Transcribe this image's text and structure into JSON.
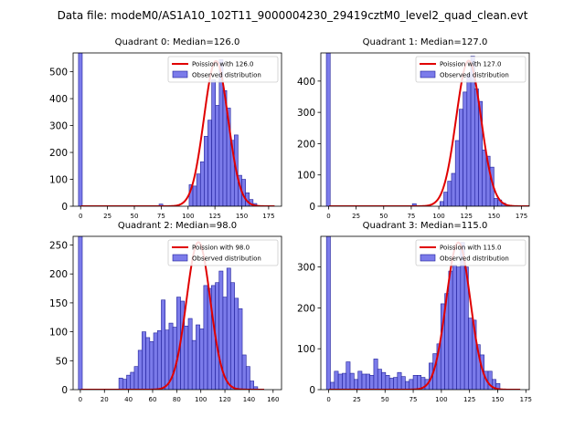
{
  "figure": {
    "suptitle": "Data file: modeM0/AS1A10_102T11_9000004230_29419cztM0_level2_quad_clean.evt"
  },
  "colors": {
    "bar_fill": "#7b7bea",
    "bar_edge": "#1f1f9a",
    "poisson_line": "#e00000"
  },
  "chart_data": [
    {
      "type": "bar",
      "title": "Quadrant 0: Median=126.0",
      "legend": [
        "Poission with 126.0",
        "Observed distribution"
      ],
      "legend_position": "top-right",
      "xlim": [
        -7,
        187
      ],
      "ylim": [
        0,
        570
      ],
      "xticks": [
        0,
        25,
        50,
        75,
        100,
        125,
        150,
        175
      ],
      "yticks": [
        0,
        100,
        200,
        300,
        400,
        500
      ],
      "bin_width": 3.5,
      "bins": [
        [
          -2,
          570
        ],
        [
          73,
          8
        ],
        [
          101,
          80
        ],
        [
          104.5,
          75
        ],
        [
          108,
          120
        ],
        [
          111.5,
          165
        ],
        [
          115,
          260
        ],
        [
          118.5,
          320
        ],
        [
          122,
          470
        ],
        [
          125.5,
          375
        ],
        [
          129,
          545
        ],
        [
          132.5,
          430
        ],
        [
          136,
          365
        ],
        [
          139.5,
          245
        ],
        [
          143,
          265
        ],
        [
          146.5,
          115
        ],
        [
          150,
          100
        ],
        [
          153.5,
          50
        ],
        [
          157,
          25
        ],
        [
          160.5,
          10
        ]
      ],
      "poisson_mean": 126.0,
      "poisson_peak": 540
    },
    {
      "type": "bar",
      "title": "Quadrant 1: Median=127.0",
      "legend": [
        "Poission with 127.0",
        "Observed distribution"
      ],
      "legend_position": "top-right",
      "xlim": [
        -7,
        182
      ],
      "ylim": [
        0,
        490
      ],
      "xticks": [
        0,
        25,
        50,
        75,
        100,
        125,
        150,
        175
      ],
      "yticks": [
        0,
        100,
        200,
        300,
        400
      ],
      "bin_width": 3.5,
      "bins": [
        [
          -2,
          490
        ],
        [
          76,
          8
        ],
        [
          101,
          15
        ],
        [
          104.5,
          45
        ],
        [
          108,
          80
        ],
        [
          111.5,
          105
        ],
        [
          115,
          210
        ],
        [
          118.5,
          310
        ],
        [
          122,
          365
        ],
        [
          125.5,
          420
        ],
        [
          129,
          480
        ],
        [
          132.5,
          375
        ],
        [
          136,
          335
        ],
        [
          139.5,
          180
        ],
        [
          143,
          160
        ],
        [
          146.5,
          125
        ],
        [
          150,
          25
        ],
        [
          153.5,
          20
        ],
        [
          157,
          10
        ]
      ],
      "poisson_mean": 127.0,
      "poisson_peak": 465
    },
    {
      "type": "bar",
      "title": "Quadrant 2: Median=98.0",
      "legend": [
        "Poission with 98.0",
        "Observed distribution"
      ],
      "legend_position": "top-right",
      "xlim": [
        -6,
        167
      ],
      "ylim": [
        0,
        265
      ],
      "xticks": [
        0,
        20,
        40,
        60,
        80,
        100,
        120,
        140,
        160
      ],
      "yticks": [
        0,
        50,
        100,
        150,
        200,
        250
      ],
      "bin_width": 3.2,
      "bins": [
        [
          -1.6,
          265
        ],
        [
          32,
          20
        ],
        [
          35.2,
          18
        ],
        [
          38.4,
          25
        ],
        [
          41.6,
          30
        ],
        [
          44.8,
          40
        ],
        [
          48,
          68
        ],
        [
          51.2,
          100
        ],
        [
          54.4,
          90
        ],
        [
          57.6,
          83
        ],
        [
          60.8,
          98
        ],
        [
          64,
          102
        ],
        [
          67.2,
          155
        ],
        [
          70.4,
          103
        ],
        [
          73.6,
          115
        ],
        [
          76.8,
          108
        ],
        [
          80,
          160
        ],
        [
          83.2,
          153
        ],
        [
          86.4,
          110
        ],
        [
          89.6,
          123
        ],
        [
          92.8,
          85
        ],
        [
          96,
          112
        ],
        [
          99.2,
          105
        ],
        [
          102.4,
          180
        ],
        [
          105.6,
          175
        ],
        [
          108.8,
          180
        ],
        [
          112,
          185
        ],
        [
          115.2,
          205
        ],
        [
          118.4,
          160
        ],
        [
          121.6,
          210
        ],
        [
          124.8,
          185
        ],
        [
          128,
          158
        ],
        [
          131.2,
          140
        ],
        [
          134.4,
          60
        ],
        [
          137.6,
          40
        ],
        [
          140.8,
          15
        ],
        [
          144,
          5
        ]
      ],
      "poisson_mean": 98.0,
      "poisson_peak": 255
    },
    {
      "type": "bar",
      "title": "Quadrant 3: Median=115.0",
      "legend": [
        "Poission with 115.0",
        "Observed distribution"
      ],
      "legend_position": "top-right",
      "xlim": [
        -7,
        178
      ],
      "ylim": [
        0,
        375
      ],
      "xticks": [
        0,
        25,
        50,
        75,
        100,
        125,
        150,
        175
      ],
      "yticks": [
        0,
        100,
        200,
        300
      ],
      "bin_width": 3.5,
      "bins": [
        [
          -2,
          375
        ],
        [
          1.5,
          18
        ],
        [
          5,
          45
        ],
        [
          8.5,
          38
        ],
        [
          12,
          40
        ],
        [
          15.5,
          68
        ],
        [
          19,
          40
        ],
        [
          22.5,
          25
        ],
        [
          26,
          45
        ],
        [
          29.5,
          38
        ],
        [
          33,
          38
        ],
        [
          36.5,
          35
        ],
        [
          40,
          75
        ],
        [
          43.5,
          50
        ],
        [
          47,
          42
        ],
        [
          50.5,
          35
        ],
        [
          54,
          28
        ],
        [
          57.5,
          30
        ],
        [
          61,
          42
        ],
        [
          64.5,
          32
        ],
        [
          68,
          20
        ],
        [
          71.5,
          25
        ],
        [
          75,
          35
        ],
        [
          78.5,
          35
        ],
        [
          82,
          30
        ],
        [
          85.5,
          25
        ],
        [
          89,
          65
        ],
        [
          92.5,
          88
        ],
        [
          96,
          112
        ],
        [
          99.5,
          210
        ],
        [
          103,
          235
        ],
        [
          106.5,
          290
        ],
        [
          110,
          305
        ],
        [
          113.5,
          300
        ],
        [
          117,
          360
        ],
        [
          120.5,
          300
        ],
        [
          124,
          175
        ],
        [
          127.5,
          170
        ],
        [
          131,
          110
        ],
        [
          134.5,
          85
        ],
        [
          138,
          45
        ],
        [
          141.5,
          45
        ],
        [
          145,
          25
        ],
        [
          148.5,
          15
        ]
      ],
      "poisson_mean": 115.0,
      "poisson_peak": 360
    }
  ]
}
